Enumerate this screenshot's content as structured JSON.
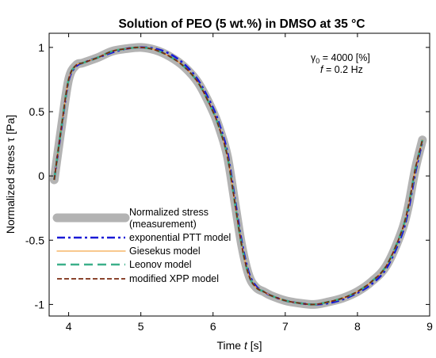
{
  "chart_data": {
    "type": "line",
    "title": "Solution of PEO (5 wt.%) in DMSO at 35 °C",
    "xlabel": {
      "text": "Time ",
      "var": "t",
      "unit": " [s]"
    },
    "ylabel": {
      "text": "Normalized stress τ [Pa]"
    },
    "xlim": [
      3.73,
      9.0
    ],
    "ylim": [
      -1.09,
      1.11
    ],
    "xticks": [
      4,
      5,
      6,
      7,
      8,
      9
    ],
    "yticks": [
      -1,
      -0.5,
      0,
      0.5,
      1
    ],
    "xtick_labels": [
      "4",
      "5",
      "6",
      "7",
      "8",
      "9"
    ],
    "ytick_labels": [
      "-1",
      "-0.5",
      "0",
      "0.5",
      "1"
    ],
    "grid": false,
    "legend_position": "bottom-left",
    "annotations": [
      {
        "id": "gamma",
        "sym": "γ",
        "sub": "0",
        "rest": " = 4000 [%]"
      },
      {
        "id": "freq",
        "sym": "f",
        "rest": " = 0.2 Hz"
      }
    ],
    "series": [
      {
        "name": "Normalized stress",
        "name_line2": "(measurement)",
        "color": "#b3b3b3",
        "style": "solid-thick",
        "x": [
          3.8,
          3.9,
          4.0,
          4.1,
          4.2,
          4.4,
          4.6,
          4.8,
          5.0,
          5.2,
          5.4,
          5.6,
          5.8,
          6.0,
          6.1,
          6.2,
          6.3,
          6.4,
          6.5,
          6.6,
          6.7,
          6.8,
          7.0,
          7.2,
          7.4,
          7.6,
          7.8,
          8.0,
          8.2,
          8.4,
          8.6,
          8.7,
          8.8,
          8.9
        ],
        "y": [
          -0.03,
          0.38,
          0.75,
          0.86,
          0.88,
          0.92,
          0.97,
          0.99,
          1.0,
          0.98,
          0.93,
          0.85,
          0.72,
          0.5,
          0.35,
          0.15,
          -0.2,
          -0.55,
          -0.78,
          -0.87,
          -0.9,
          -0.93,
          -0.97,
          -0.99,
          -1.0,
          -0.98,
          -0.95,
          -0.9,
          -0.82,
          -0.7,
          -0.45,
          -0.25,
          0.05,
          0.28
        ]
      },
      {
        "name": "exponential PTT model",
        "color": "#1a1ad6",
        "style": "dashdot",
        "x": [
          3.8,
          3.9,
          4.0,
          4.1,
          4.2,
          4.4,
          4.6,
          4.8,
          5.0,
          5.2,
          5.4,
          5.6,
          5.8,
          6.0,
          6.1,
          6.2,
          6.3,
          6.4,
          6.5,
          6.6,
          6.7,
          6.8,
          7.0,
          7.2,
          7.4,
          7.6,
          7.8,
          8.0,
          8.2,
          8.4,
          8.6,
          8.7,
          8.8,
          8.9
        ],
        "y": [
          -0.03,
          0.37,
          0.74,
          0.85,
          0.88,
          0.92,
          0.96,
          0.99,
          1.0,
          0.99,
          0.95,
          0.87,
          0.74,
          0.53,
          0.38,
          0.18,
          -0.17,
          -0.52,
          -0.76,
          -0.86,
          -0.9,
          -0.93,
          -0.97,
          -0.99,
          -1.0,
          -0.99,
          -0.96,
          -0.91,
          -0.84,
          -0.72,
          -0.48,
          -0.28,
          0.02,
          0.27
        ]
      },
      {
        "name": "Giesekus model",
        "color": "#f4a64a",
        "style": "solid-thin",
        "x": [
          3.8,
          3.9,
          4.0,
          4.1,
          4.2,
          4.4,
          4.6,
          4.8,
          5.0,
          5.2,
          5.4,
          5.6,
          5.8,
          6.0,
          6.1,
          6.2,
          6.3,
          6.4,
          6.5,
          6.6,
          6.7,
          6.8,
          7.0,
          7.2,
          7.4,
          7.6,
          7.8,
          8.0,
          8.2,
          8.4,
          8.6,
          8.7,
          8.8,
          8.9
        ],
        "y": [
          -0.03,
          0.38,
          0.75,
          0.86,
          0.88,
          0.92,
          0.97,
          0.99,
          1.0,
          0.98,
          0.93,
          0.85,
          0.72,
          0.5,
          0.35,
          0.15,
          -0.2,
          -0.55,
          -0.78,
          -0.87,
          -0.9,
          -0.93,
          -0.97,
          -0.99,
          -1.0,
          -0.98,
          -0.95,
          -0.9,
          -0.82,
          -0.7,
          -0.45,
          -0.25,
          0.05,
          0.28
        ]
      },
      {
        "name": "Leonov model",
        "color": "#3cb08a",
        "style": "dashed-long",
        "x": [
          3.8,
          3.9,
          4.0,
          4.1,
          4.2,
          4.4,
          4.6,
          4.8,
          5.0,
          5.2,
          5.4,
          5.6,
          5.8,
          6.0,
          6.1,
          6.2,
          6.3,
          6.4,
          6.5,
          6.6,
          6.7,
          6.8,
          7.0,
          7.2,
          7.4,
          7.6,
          7.8,
          8.0,
          8.2,
          8.4,
          8.6,
          8.7,
          8.8,
          8.9
        ],
        "y": [
          -0.03,
          0.38,
          0.75,
          0.86,
          0.88,
          0.92,
          0.97,
          0.99,
          1.0,
          0.98,
          0.93,
          0.85,
          0.72,
          0.5,
          0.35,
          0.15,
          -0.2,
          -0.55,
          -0.78,
          -0.87,
          -0.9,
          -0.93,
          -0.97,
          -0.99,
          -1.0,
          -0.98,
          -0.95,
          -0.9,
          -0.82,
          -0.7,
          -0.45,
          -0.25,
          0.05,
          0.28
        ]
      },
      {
        "name": "modified XPP model",
        "color": "#7a2a10",
        "style": "dashed",
        "x": [
          3.8,
          3.9,
          4.0,
          4.1,
          4.2,
          4.4,
          4.6,
          4.8,
          5.0,
          5.2,
          5.4,
          5.6,
          5.8,
          6.0,
          6.1,
          6.2,
          6.3,
          6.4,
          6.5,
          6.6,
          6.7,
          6.8,
          7.0,
          7.2,
          7.4,
          7.6,
          7.8,
          8.0,
          8.2,
          8.4,
          8.6,
          8.7,
          8.8,
          8.9
        ],
        "y": [
          -0.03,
          0.38,
          0.75,
          0.86,
          0.88,
          0.92,
          0.97,
          0.99,
          1.0,
          0.98,
          0.93,
          0.85,
          0.72,
          0.5,
          0.35,
          0.15,
          -0.2,
          -0.55,
          -0.78,
          -0.87,
          -0.9,
          -0.93,
          -0.97,
          -0.99,
          -1.0,
          -0.98,
          -0.95,
          -0.9,
          -0.82,
          -0.7,
          -0.45,
          -0.25,
          0.05,
          0.28
        ]
      }
    ]
  }
}
